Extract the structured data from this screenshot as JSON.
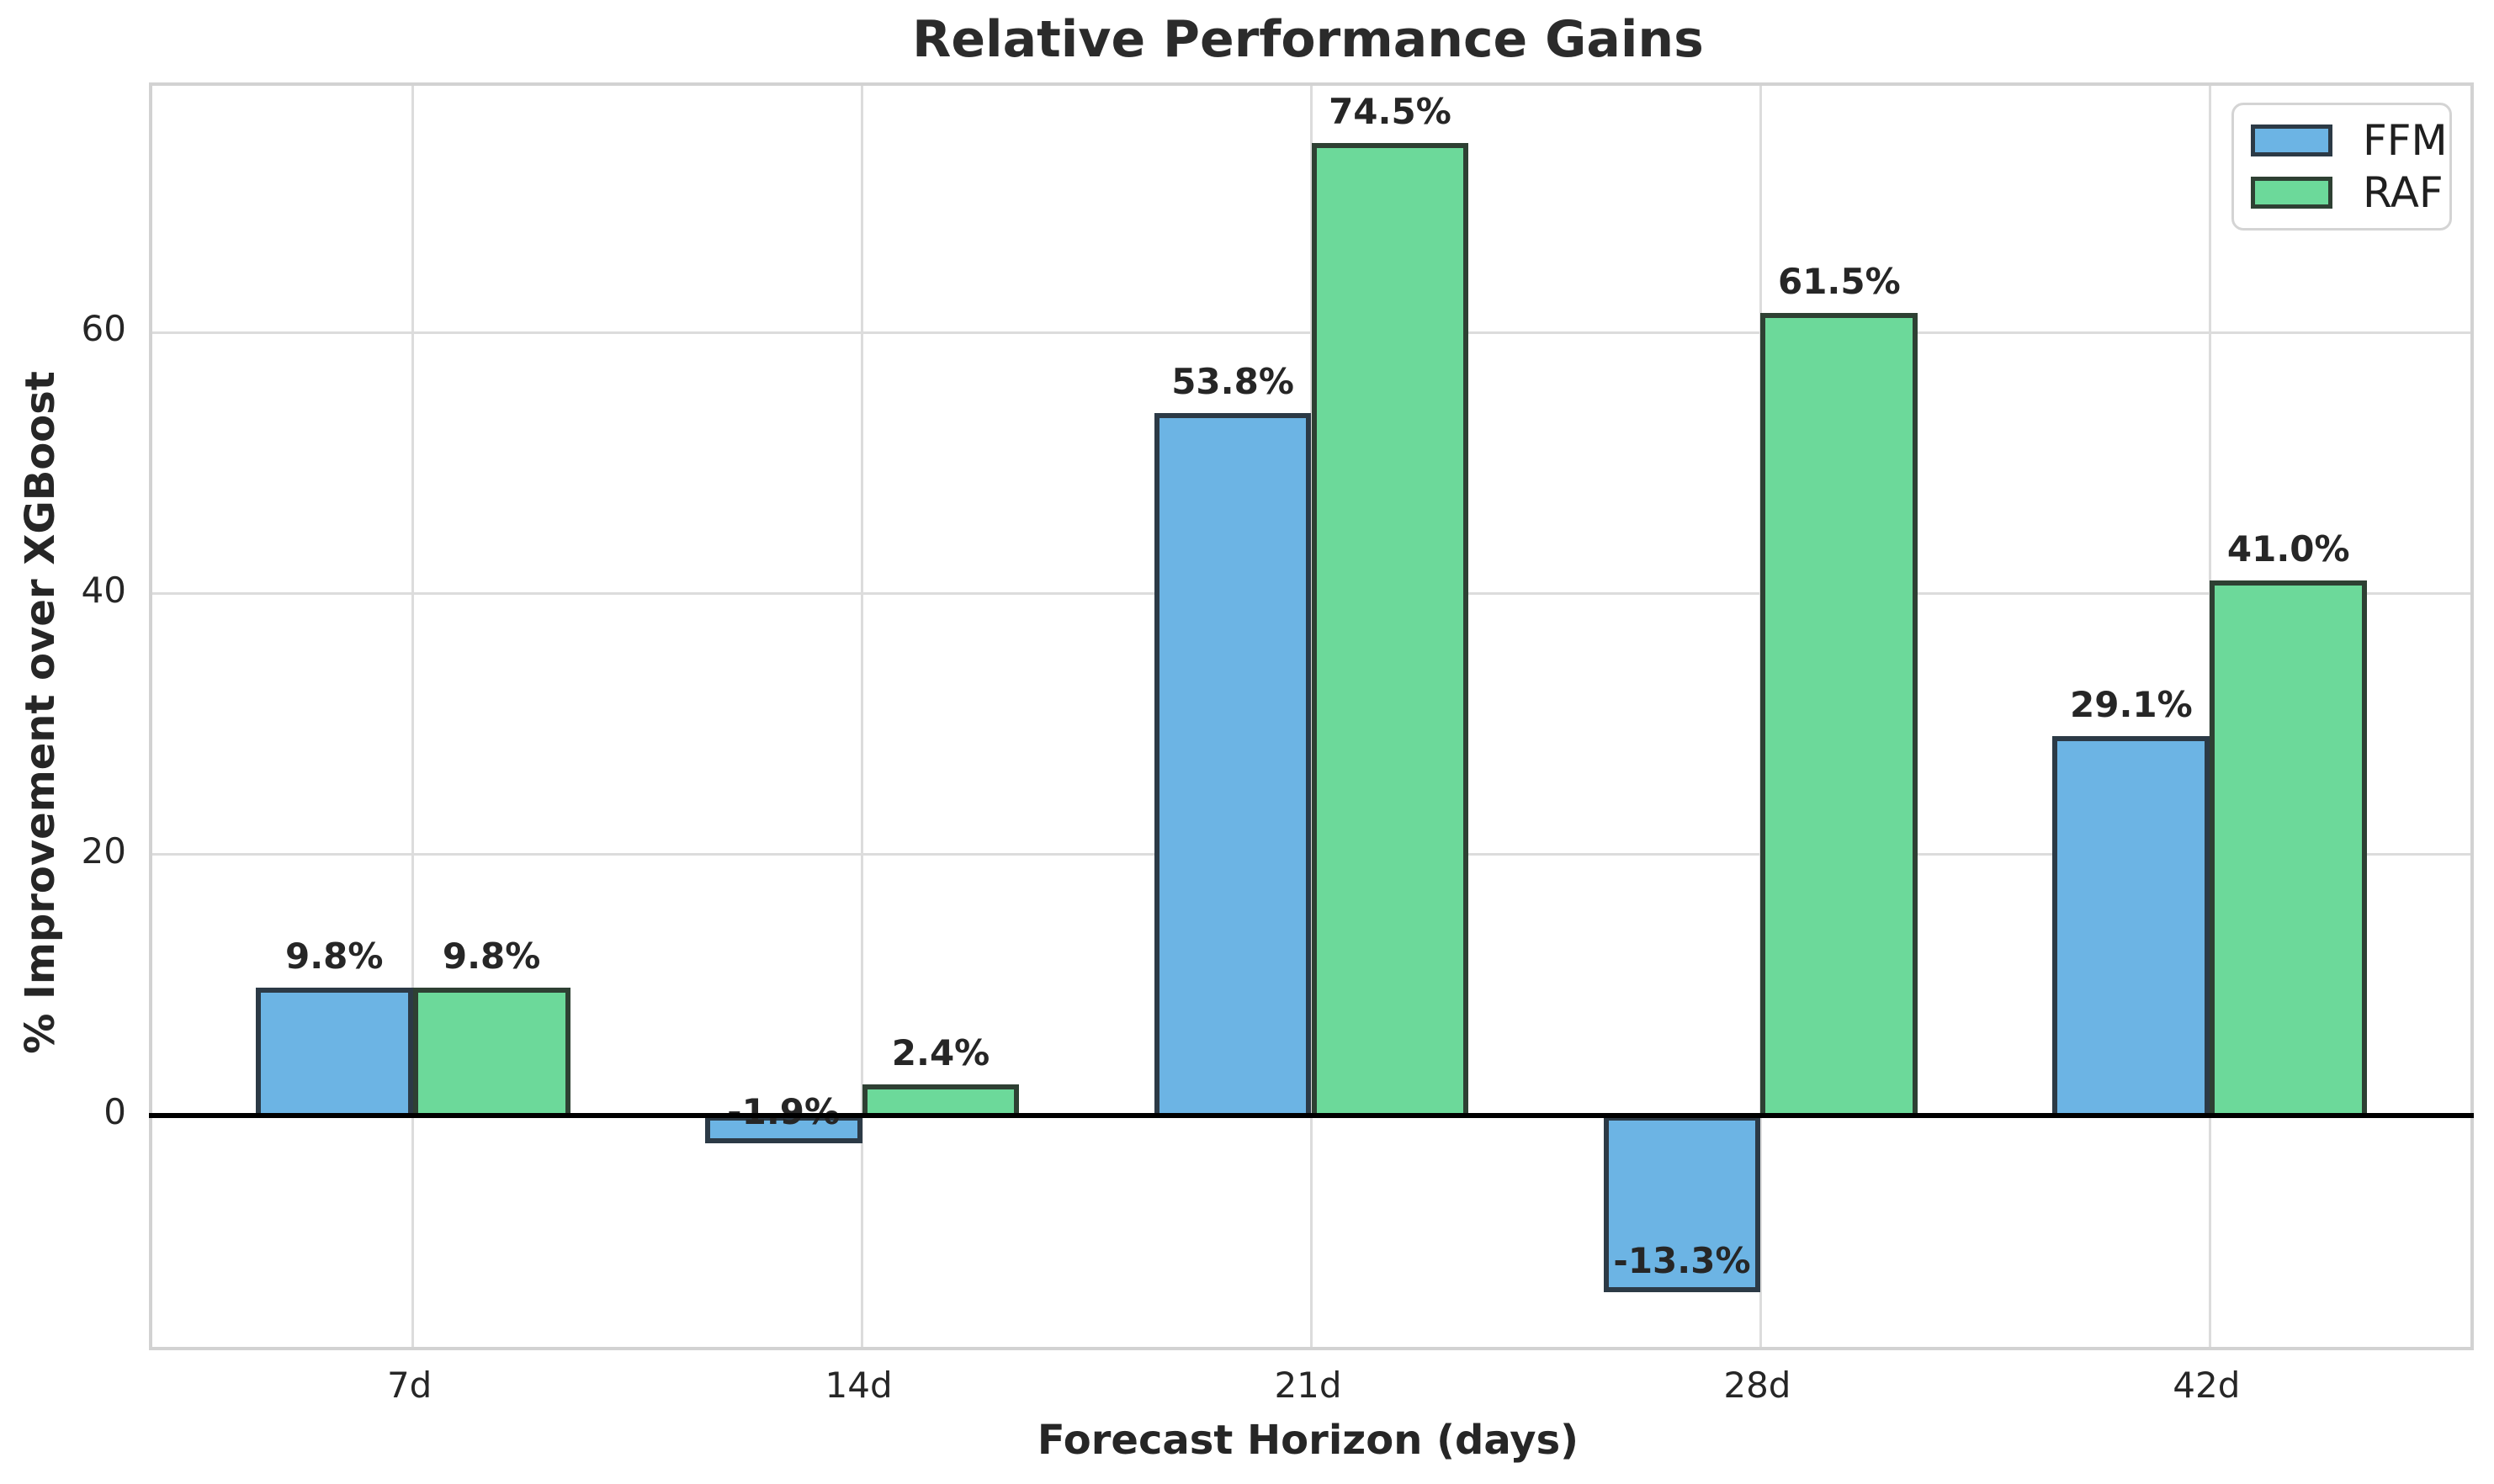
{
  "chart_data": {
    "type": "bar",
    "title": "Relative Performance Gains",
    "xlabel": "Forecast Horizon (days)",
    "ylabel": "% Improvement over XGBoost",
    "categories": [
      "7d",
      "14d",
      "21d",
      "28d",
      "42d"
    ],
    "series": [
      {
        "name": "FFM",
        "color": "#6CB4E4",
        "edge_color": "#2C3A46",
        "values": [
          9.8,
          -1.9,
          53.8,
          -13.3,
          29.1
        ],
        "labels": [
          "9.8%",
          "-1.9%",
          "53.8%",
          "-13.3%",
          "29.1%"
        ]
      },
      {
        "name": "RAF",
        "color": "#6CD99A",
        "edge_color": "#2E4033",
        "values": [
          9.8,
          2.4,
          74.5,
          61.5,
          41.0
        ],
        "labels": [
          "9.8%",
          "2.4%",
          "74.5%",
          "61.5%",
          "41.0%"
        ]
      }
    ],
    "yticks": [
      "0",
      "20",
      "40",
      "60"
    ],
    "ytick_values": [
      0,
      20,
      40,
      60
    ],
    "ylim": [
      -17.7,
      78.9
    ],
    "bar_width_frac": 0.35,
    "x_margin_units": 0.58,
    "grid": true,
    "legend_position": "upper-right",
    "colors": {
      "grid": "#DCDCDC",
      "spine": "#D2D2D2",
      "zero_line": "#000000",
      "tick_text": "#262626",
      "label_text": "#262626",
      "title_text": "#2B2B2B",
      "background": "#FFFFFF"
    }
  }
}
